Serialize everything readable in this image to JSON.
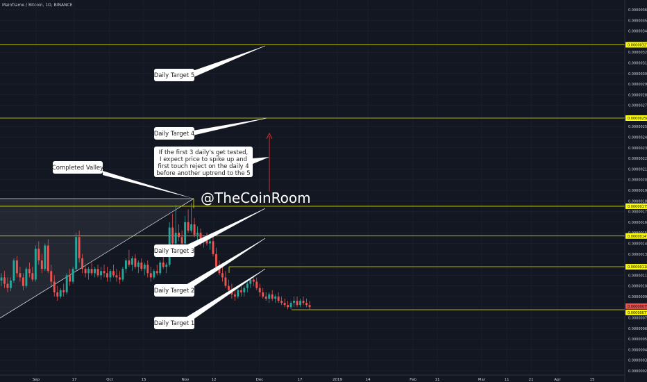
{
  "chart_data": {
    "type": "candlestick",
    "title": "Mainframe / Bitcoin, 1D, BINANCE",
    "watermark": "@TheCoinRoom",
    "ylim": [
      2e-07,
      3.6e-06
    ],
    "y_ticks": [
      "0.00000360",
      "0.00000350",
      "0.00000340",
      "0.00000320",
      "0.00000310",
      "0.00000300",
      "0.00000290",
      "0.00000280",
      "0.00000270",
      "0.00000250",
      "0.00000240",
      "0.00000230",
      "0.00000220",
      "0.00000210",
      "0.00000200",
      "0.00000190",
      "0.00000180",
      "0.00000170",
      "0.00000160",
      "0.00000150",
      "0.00000140",
      "0.00000130",
      "0.00000110",
      "0.00000100",
      "0.00000090",
      "0.00000080",
      "0.00000070",
      "0.00000060",
      "0.00000050",
      "0.00000040",
      "0.00000030",
      "0.00000020"
    ],
    "x_ticks": [
      "Sep",
      "17",
      "Oct",
      "15",
      "Nov",
      "12",
      "Dec",
      "17",
      "2019",
      "14",
      "Feb",
      "11",
      "Mar",
      "11",
      "21",
      "Apr",
      "15"
    ],
    "price_tags": [
      "0.00000327",
      "0.00000258",
      "0.00000175",
      "0.00000147",
      "0.00000118",
      "0.00000079",
      "0.00000077"
    ],
    "annotations": {
      "target1": "Daily Target 1",
      "target2": "Daily Target 2",
      "target3": "Daily Target 3",
      "target4": "Daily Target 4",
      "target5": "Daily Target 5",
      "valley": "Completed Valley",
      "note": [
        "If the first 3 daily's get tested,",
        "I expect price to spike up and",
        "first touch reject on the daily 4",
        "before another uptrend to the 5"
      ]
    },
    "colors": {
      "background": "#131722",
      "up": "#26a69a",
      "down": "#ef5350",
      "levels": "#e5e500",
      "tag": "#ffff00",
      "current_price": "#ef5350",
      "grid": "#1f2433",
      "arrow": "#d32f2f"
    },
    "candles": [
      {
        "o": 1.05e-06,
        "h": 1.12e-06,
        "l": 1e-06,
        "c": 1.08e-06
      },
      {
        "o": 1.08e-06,
        "h": 1.14e-06,
        "l": 9.8e-07,
        "c": 1.02e-06
      },
      {
        "o": 1.02e-06,
        "h": 1.08e-06,
        "l": 9.4e-07,
        "c": 9.8e-07
      },
      {
        "o": 9.8e-07,
        "h": 1.08e-06,
        "l": 9.5e-07,
        "c": 1.05e-06
      },
      {
        "o": 1.05e-06,
        "h": 1.26e-06,
        "l": 1.03e-06,
        "c": 1.24e-06
      },
      {
        "o": 1.24e-06,
        "h": 1.28e-06,
        "l": 1.08e-06,
        "c": 1.12e-06
      },
      {
        "o": 1.12e-06,
        "h": 1.18e-06,
        "l": 1.04e-06,
        "c": 1.08e-06
      },
      {
        "o": 1.08e-06,
        "h": 1.12e-06,
        "l": 9.6e-07,
        "c": 1e-06
      },
      {
        "o": 1e-06,
        "h": 1.18e-06,
        "l": 9.8e-07,
        "c": 1.16e-06
      },
      {
        "o": 1.16e-06,
        "h": 1.22e-06,
        "l": 1.08e-06,
        "c": 1.12e-06
      },
      {
        "o": 1.12e-06,
        "h": 1.18e-06,
        "l": 1.04e-06,
        "c": 1.06e-06
      },
      {
        "o": 1.06e-06,
        "h": 1.38e-06,
        "l": 1.04e-06,
        "c": 1.35e-06
      },
      {
        "o": 1.35e-06,
        "h": 1.42e-06,
        "l": 1.2e-06,
        "c": 1.24e-06
      },
      {
        "o": 1.24e-06,
        "h": 1.3e-06,
        "l": 1.12e-06,
        "c": 1.16e-06
      },
      {
        "o": 1.16e-06,
        "h": 1.4e-06,
        "l": 1.14e-06,
        "c": 1.38e-06
      },
      {
        "o": 1.38e-06,
        "h": 1.44e-06,
        "l": 1.12e-06,
        "c": 1.14e-06
      },
      {
        "o": 1.14e-06,
        "h": 1.2e-06,
        "l": 1e-06,
        "c": 1.04e-06
      },
      {
        "o": 1.04e-06,
        "h": 1.1e-06,
        "l": 9e-07,
        "c": 9.4e-07
      },
      {
        "o": 9.4e-07,
        "h": 1e-06,
        "l": 8.6e-07,
        "c": 9e-07
      },
      {
        "o": 9e-07,
        "h": 9.8e-07,
        "l": 8.8e-07,
        "c": 9.6e-07
      },
      {
        "o": 9.6e-07,
        "h": 1.02e-06,
        "l": 9e-07,
        "c": 9.4e-07
      },
      {
        "o": 9.4e-07,
        "h": 1.12e-06,
        "l": 9.2e-07,
        "c": 1.1e-06
      },
      {
        "o": 1.1e-06,
        "h": 1.16e-06,
        "l": 1e-06,
        "c": 1.04e-06
      },
      {
        "o": 1.04e-06,
        "h": 1.18e-06,
        "l": 1.02e-06,
        "c": 1.16e-06
      },
      {
        "o": 1.16e-06,
        "h": 1.5e-06,
        "l": 1.14e-06,
        "c": 1.46e-06
      },
      {
        "o": 1.46e-06,
        "h": 1.52e-06,
        "l": 1.22e-06,
        "c": 1.26e-06
      },
      {
        "o": 1.26e-06,
        "h": 1.3e-06,
        "l": 1.12e-06,
        "c": 1.16e-06
      },
      {
        "o": 1.16e-06,
        "h": 1.2e-06,
        "l": 1.08e-06,
        "c": 1.12e-06
      },
      {
        "o": 1.12e-06,
        "h": 1.18e-06,
        "l": 1.06e-06,
        "c": 1.16e-06
      },
      {
        "o": 1.16e-06,
        "h": 1.22e-06,
        "l": 1.1e-06,
        "c": 1.12e-06
      },
      {
        "o": 1.12e-06,
        "h": 1.18e-06,
        "l": 1.08e-06,
        "c": 1.16e-06
      },
      {
        "o": 1.16e-06,
        "h": 1.2e-06,
        "l": 1.08e-06,
        "c": 1.1e-06
      },
      {
        "o": 1.1e-06,
        "h": 1.18e-06,
        "l": 1.06e-06,
        "c": 1.14e-06
      },
      {
        "o": 1.14e-06,
        "h": 1.2e-06,
        "l": 1.08e-06,
        "c": 1.12e-06
      },
      {
        "o": 1.12e-06,
        "h": 1.18e-06,
        "l": 1.04e-06,
        "c": 1.08e-06
      },
      {
        "o": 1.08e-06,
        "h": 1.16e-06,
        "l": 1.04e-06,
        "c": 1.14e-06
      },
      {
        "o": 1.14e-06,
        "h": 1.2e-06,
        "l": 1.08e-06,
        "c": 1.1e-06
      },
      {
        "o": 1.1e-06,
        "h": 1.16e-06,
        "l": 1.04e-06,
        "c": 1.08e-06
      },
      {
        "o": 1.08e-06,
        "h": 1.14e-06,
        "l": 1.02e-06,
        "c": 1.06e-06
      },
      {
        "o": 1.06e-06,
        "h": 1.18e-06,
        "l": 1.04e-06,
        "c": 1.16e-06
      },
      {
        "o": 1.16e-06,
        "h": 1.26e-06,
        "l": 1.12e-06,
        "c": 1.24e-06
      },
      {
        "o": 1.24e-06,
        "h": 1.34e-06,
        "l": 1.18e-06,
        "c": 1.2e-06
      },
      {
        "o": 1.2e-06,
        "h": 1.28e-06,
        "l": 1.14e-06,
        "c": 1.26e-06
      },
      {
        "o": 1.26e-06,
        "h": 1.3e-06,
        "l": 1.16e-06,
        "c": 1.18e-06
      },
      {
        "o": 1.18e-06,
        "h": 1.24e-06,
        "l": 1.12e-06,
        "c": 1.22e-06
      },
      {
        "o": 1.22e-06,
        "h": 1.26e-06,
        "l": 1.14e-06,
        "c": 1.16e-06
      },
      {
        "o": 1.16e-06,
        "h": 1.22e-06,
        "l": 1.1e-06,
        "c": 1.2e-06
      },
      {
        "o": 1.2e-06,
        "h": 1.24e-06,
        "l": 1.08e-06,
        "c": 1.12e-06
      },
      {
        "o": 1.12e-06,
        "h": 1.18e-06,
        "l": 1.04e-06,
        "c": 1.08e-06
      },
      {
        "o": 1.08e-06,
        "h": 1.16e-06,
        "l": 1.06e-06,
        "c": 1.14e-06
      },
      {
        "o": 1.14e-06,
        "h": 1.2e-06,
        "l": 1.1e-06,
        "c": 1.12e-06
      },
      {
        "o": 1.12e-06,
        "h": 1.24e-06,
        "l": 1.1e-06,
        "c": 1.22e-06
      },
      {
        "o": 1.22e-06,
        "h": 1.28e-06,
        "l": 1.16e-06,
        "c": 1.18e-06
      },
      {
        "o": 1.18e-06,
        "h": 1.22e-06,
        "l": 1.12e-06,
        "c": 1.2e-06
      },
      {
        "o": 1.2e-06,
        "h": 1.6e-06,
        "l": 1.18e-06,
        "c": 1.55e-06
      },
      {
        "o": 1.55e-06,
        "h": 1.68e-06,
        "l": 1.35e-06,
        "c": 1.4e-06
      },
      {
        "o": 1.4e-06,
        "h": 1.76e-06,
        "l": 1.38e-06,
        "c": 1.5e-06
      },
      {
        "o": 1.5e-06,
        "h": 1.58e-06,
        "l": 1.42e-06,
        "c": 1.46e-06
      },
      {
        "o": 1.46e-06,
        "h": 1.52e-06,
        "l": 1.36e-06,
        "c": 1.4e-06
      },
      {
        "o": 1.4e-06,
        "h": 1.66e-06,
        "l": 1.38e-06,
        "c": 1.6e-06
      },
      {
        "o": 1.6e-06,
        "h": 1.72e-06,
        "l": 1.5e-06,
        "c": 1.52e-06
      },
      {
        "o": 1.52e-06,
        "h": 1.78e-06,
        "l": 1.5e-06,
        "c": 1.58e-06
      },
      {
        "o": 1.58e-06,
        "h": 1.64e-06,
        "l": 1.46e-06,
        "c": 1.48e-06
      },
      {
        "o": 1.48e-06,
        "h": 1.56e-06,
        "l": 1.42e-06,
        "c": 1.5e-06
      },
      {
        "o": 1.5e-06,
        "h": 1.54e-06,
        "l": 1.38e-06,
        "c": 1.42e-06
      },
      {
        "o": 1.42e-06,
        "h": 1.48e-06,
        "l": 1.36e-06,
        "c": 1.44e-06
      },
      {
        "o": 1.44e-06,
        "h": 1.5e-06,
        "l": 1.38e-06,
        "c": 1.4e-06
      },
      {
        "o": 1.4e-06,
        "h": 1.46e-06,
        "l": 1.34e-06,
        "c": 1.42e-06
      },
      {
        "o": 1.42e-06,
        "h": 1.46e-06,
        "l": 1.28e-06,
        "c": 1.3e-06
      },
      {
        "o": 1.3e-06,
        "h": 1.36e-06,
        "l": 1.16e-06,
        "c": 1.18e-06
      },
      {
        "o": 1.18e-06,
        "h": 1.24e-06,
        "l": 1.1e-06,
        "c": 1.12e-06
      },
      {
        "o": 1.12e-06,
        "h": 1.18e-06,
        "l": 1.04e-06,
        "c": 1.08e-06
      },
      {
        "o": 1.08e-06,
        "h": 1.14e-06,
        "l": 9.8e-07,
        "c": 1e-06
      },
      {
        "o": 1e-06,
        "h": 1.06e-06,
        "l": 9.2e-07,
        "c": 9.6e-07
      },
      {
        "o": 9.6e-07,
        "h": 1.02e-06,
        "l": 8.8e-07,
        "c": 9.2e-07
      },
      {
        "o": 9.2e-07,
        "h": 9.8e-07,
        "l": 8.6e-07,
        "c": 9e-07
      },
      {
        "o": 9e-07,
        "h": 9.8e-07,
        "l": 8.8e-07,
        "c": 9.6e-07
      },
      {
        "o": 9.6e-07,
        "h": 1e-06,
        "l": 9e-07,
        "c": 9.4e-07
      },
      {
        "o": 9.4e-07,
        "h": 1e-06,
        "l": 9e-07,
        "c": 9.8e-07
      },
      {
        "o": 9.8e-07,
        "h": 1.04e-06,
        "l": 9.4e-07,
        "c": 1.02e-06
      },
      {
        "o": 1.02e-06,
        "h": 1.08e-06,
        "l": 9.8e-07,
        "c": 1.06e-06
      },
      {
        "o": 1.06e-06,
        "h": 1.1e-06,
        "l": 1e-06,
        "c": 1.04e-06
      },
      {
        "o": 1.04e-06,
        "h": 1.08e-06,
        "l": 9.6e-07,
        "c": 9.8e-07
      },
      {
        "o": 9.8e-07,
        "h": 1.02e-06,
        "l": 9e-07,
        "c": 9.4e-07
      },
      {
        "o": 9.4e-07,
        "h": 9.8e-07,
        "l": 8.8e-07,
        "c": 9e-07
      },
      {
        "o": 9e-07,
        "h": 9.4e-07,
        "l": 8.6e-07,
        "c": 8.8e-07
      },
      {
        "o": 8.8e-07,
        "h": 9.4e-07,
        "l": 8.4e-07,
        "c": 9.2e-07
      },
      {
        "o": 9.2e-07,
        "h": 9.6e-07,
        "l": 8.6e-07,
        "c": 8.8e-07
      },
      {
        "o": 8.8e-07,
        "h": 9.2e-07,
        "l": 8.4e-07,
        "c": 9e-07
      },
      {
        "o": 9e-07,
        "h": 9.4e-07,
        "l": 8.4e-07,
        "c": 8.6e-07
      },
      {
        "o": 8.6e-07,
        "h": 9e-07,
        "l": 8.2e-07,
        "c": 8.4e-07
      },
      {
        "o": 8.4e-07,
        "h": 8.8e-07,
        "l": 8e-07,
        "c": 8.2e-07
      },
      {
        "o": 8.2e-07,
        "h": 8.6e-07,
        "l": 7.8e-07,
        "c": 8e-07
      },
      {
        "o": 8e-07,
        "h": 8.6e-07,
        "l": 7.8e-07,
        "c": 8.4e-07
      },
      {
        "o": 8.4e-07,
        "h": 9e-07,
        "l": 8e-07,
        "c": 8.6e-07
      },
      {
        "o": 8.6e-07,
        "h": 9e-07,
        "l": 8e-07,
        "c": 8.2e-07
      },
      {
        "o": 8.2e-07,
        "h": 8.8e-07,
        "l": 8e-07,
        "c": 8.6e-07
      },
      {
        "o": 8.6e-07,
        "h": 9e-07,
        "l": 8.2e-07,
        "c": 8.4e-07
      },
      {
        "o": 8.4e-07,
        "h": 8.8e-07,
        "l": 8e-07,
        "c": 8.2e-07
      },
      {
        "o": 8.2e-07,
        "h": 8.6e-07,
        "l": 7.8e-07,
        "c": 8e-07
      }
    ]
  }
}
